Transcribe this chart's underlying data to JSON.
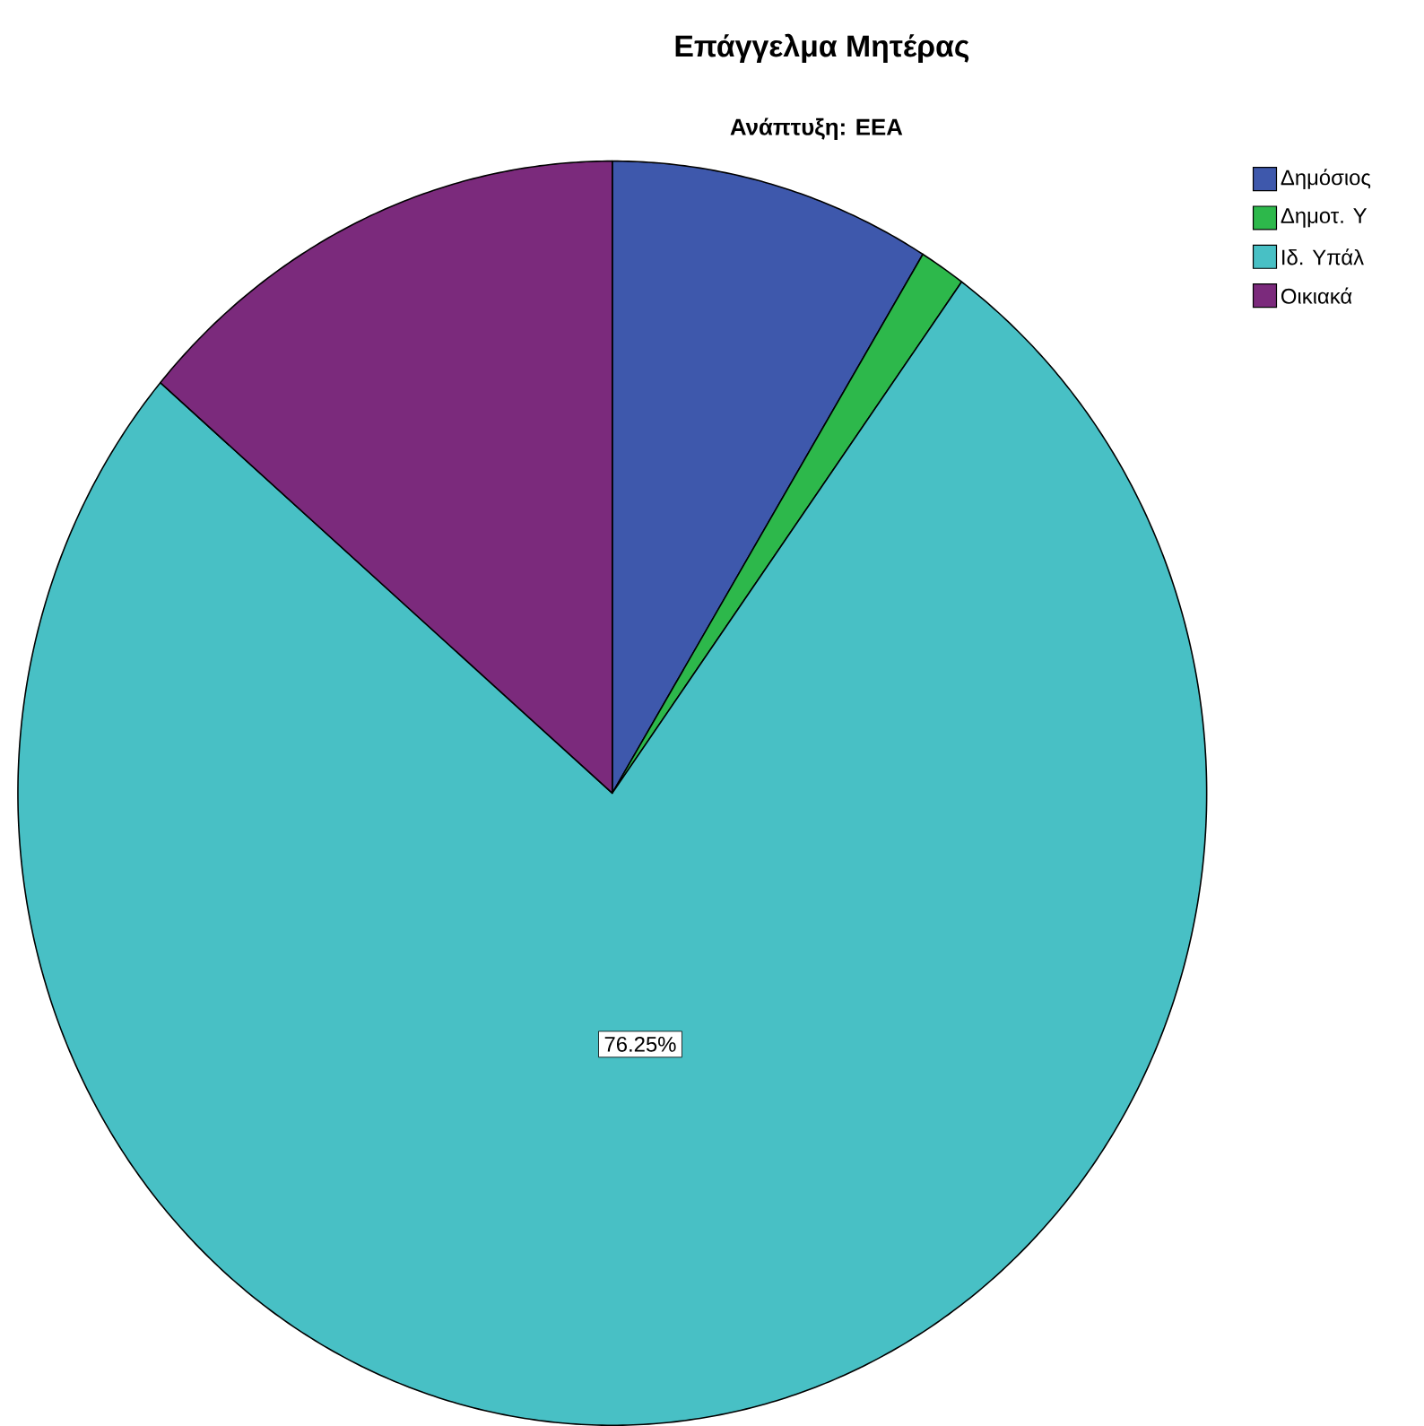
{
  "chart_data": {
    "type": "pie",
    "title": "Επάγγελμα Μητέρας",
    "subtitle": "Ανάπτυξη: ΕΕΑ",
    "categories": [
      "Δημόσιος",
      "Δημοτ. Υ",
      "Ιδ. Υπάλ",
      "Οικιακά"
    ],
    "values": [
      8.75,
      1.25,
      76.25,
      13.75
    ],
    "colors": [
      "#3e58ac",
      "#2db84b",
      "#48c0c5",
      "#7b2a7c"
    ],
    "value_labels": [
      null,
      null,
      "76.25%",
      null
    ],
    "legend": "top right"
  }
}
